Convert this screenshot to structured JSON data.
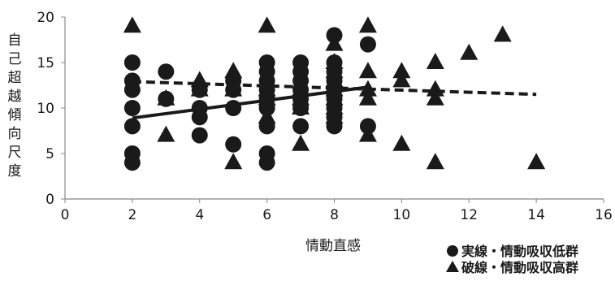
{
  "chart_data": {
    "type": "scatter",
    "xlabel": "情動直感",
    "ylabel": "自己超越傾向尺度",
    "xlim": [
      0,
      16
    ],
    "ylim": [
      0,
      20
    ],
    "xticks": [
      0,
      2,
      4,
      6,
      8,
      10,
      12,
      14,
      16
    ],
    "yticks": [
      0,
      5,
      10,
      15,
      20
    ],
    "grid": false,
    "legend_position": "bottom-right",
    "series": [
      {
        "name": "実線・情動吸収低群",
        "marker": "circle",
        "color": "#1a1a1a",
        "x": [
          2,
          2,
          2,
          2,
          2,
          2,
          2,
          3,
          3,
          4,
          4,
          4,
          4,
          5,
          5,
          5,
          5,
          6,
          6,
          6,
          6,
          6,
          6,
          6,
          6,
          6,
          7,
          7,
          7,
          7,
          7,
          7,
          7,
          8,
          8,
          8,
          8,
          8,
          8,
          8,
          8,
          8,
          9,
          9
        ],
        "y": [
          4,
          5,
          8,
          10,
          12,
          13,
          15,
          11,
          14,
          7,
          9,
          10,
          12,
          6,
          10,
          12,
          13,
          4,
          5,
          8,
          10,
          11,
          12,
          13,
          14,
          15,
          8,
          10,
          11,
          12,
          13,
          14,
          15,
          8,
          9,
          10,
          11,
          12,
          13,
          14,
          15,
          18,
          8,
          17
        ],
        "trendline": {
          "style": "solid",
          "x": [
            2,
            9
          ],
          "y": [
            8.9,
            12.3
          ]
        }
      },
      {
        "name": "破線・情動吸収高群",
        "marker": "triangle",
        "color": "#1a1a1a",
        "x": [
          2,
          3,
          3,
          4,
          4,
          5,
          5,
          5,
          6,
          6,
          6,
          6,
          6,
          7,
          7,
          7,
          7,
          8,
          8,
          8,
          8,
          8,
          8,
          8,
          8,
          9,
          9,
          9,
          9,
          9,
          10,
          10,
          10,
          11,
          11,
          11,
          11,
          12,
          13,
          14
        ],
        "y": [
          19,
          7,
          11,
          12,
          13,
          4,
          12,
          14,
          9,
          11,
          12,
          13,
          19,
          6,
          10,
          11,
          12,
          9,
          10,
          11,
          12,
          13,
          14,
          15,
          17,
          7,
          11,
          12,
          14,
          19,
          6,
          13,
          14,
          4,
          11,
          12,
          15,
          16,
          18,
          4
        ],
        "trendline": {
          "style": "dashed",
          "x": [
            2,
            14
          ],
          "y": [
            12.9,
            11.5
          ]
        }
      }
    ]
  }
}
